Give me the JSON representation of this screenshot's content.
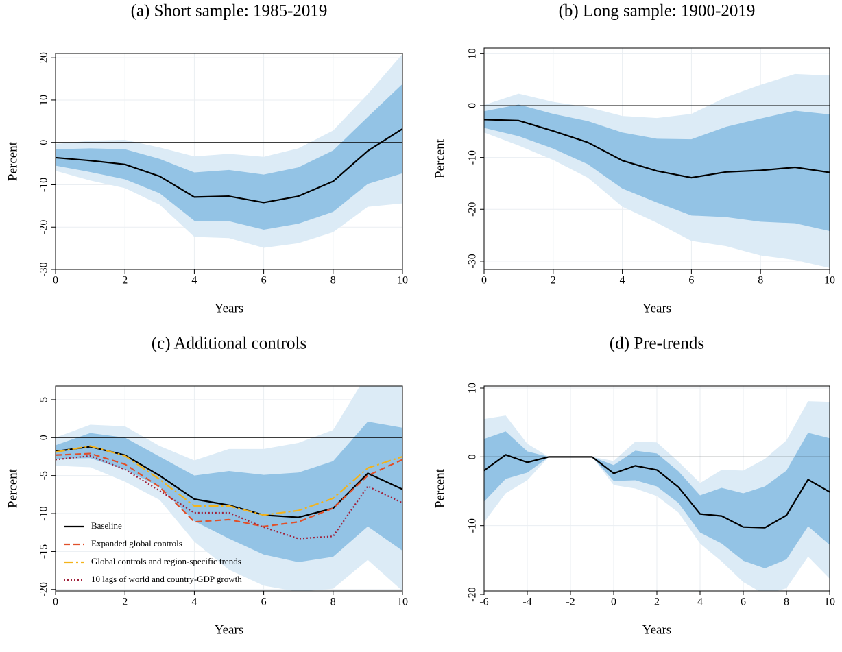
{
  "chart_data": [
    {
      "type": "line",
      "title": "(a) Short sample: 1985-2019",
      "xlabel": "Years",
      "ylabel": "Percent",
      "x": [
        0,
        1,
        2,
        3,
        4,
        5,
        6,
        7,
        8,
        9,
        10
      ],
      "xlim": [
        0,
        10
      ],
      "xticks": [
        0,
        2,
        4,
        6,
        8,
        10
      ],
      "ylim": [
        -30,
        21
      ],
      "yticks": [
        -30,
        -20,
        -10,
        0,
        10,
        20
      ],
      "grid": true,
      "hline": 0,
      "bands": [
        {
          "color": "#dcebf6",
          "lower": [
            -6.7,
            -9,
            -10.8,
            -14.7,
            -22.3,
            -22.6,
            -24.9,
            -23.8,
            -21.2,
            -15.2,
            -14.4
          ],
          "upper": [
            -0.4,
            0.4,
            0.6,
            -1.2,
            -3.3,
            -2.7,
            -3.4,
            -1.4,
            2.8,
            11.4,
            20.9
          ]
        },
        {
          "color": "#93c3e5",
          "lower": [
            -5.5,
            -7,
            -8.7,
            -12,
            -18.5,
            -18.6,
            -20.6,
            -19.2,
            -16.4,
            -9.8,
            -7.3
          ],
          "upper": [
            -1.6,
            -1.4,
            -1.6,
            -3.9,
            -7.1,
            -6.5,
            -7.6,
            -5.9,
            -1.9,
            6,
            13.8
          ]
        }
      ],
      "series": [
        {
          "color": "#000000",
          "values": [
            -3.6,
            -4.3,
            -5.2,
            -8,
            -12.9,
            -12.7,
            -14.2,
            -12.7,
            -9.2,
            -2,
            3.2
          ]
        }
      ]
    },
    {
      "type": "line",
      "title": "(b) Long sample: 1900-2019",
      "xlabel": "Years",
      "ylabel": "Percent",
      "x": [
        0,
        1,
        2,
        3,
        4,
        5,
        6,
        7,
        8,
        9,
        10
      ],
      "xlim": [
        0,
        10
      ],
      "xticks": [
        0,
        2,
        4,
        6,
        8,
        10
      ],
      "ylim": [
        -31.6,
        11.1
      ],
      "yticks": [
        -30,
        -20,
        -10,
        0,
        10
      ],
      "grid": true,
      "hline": 0,
      "bands": [
        {
          "color": "#dcebf6",
          "lower": [
            -5.2,
            -7.7,
            -10.5,
            -13.9,
            -19.5,
            -22.6,
            -26.1,
            -27.1,
            -28.9,
            -29.8,
            -31.3
          ],
          "upper": [
            0.1,
            2.3,
            0.7,
            -0.3,
            -2,
            -2.4,
            -1.6,
            1.6,
            4,
            6.1,
            5.8
          ]
        },
        {
          "color": "#93c3e5",
          "lower": [
            -4.3,
            -5.9,
            -8.3,
            -11.3,
            -16,
            -18.7,
            -21.2,
            -21.5,
            -22.4,
            -22.7,
            -24.2
          ],
          "upper": [
            -1.1,
            0.2,
            -1.6,
            -3,
            -5.2,
            -6.4,
            -6.5,
            -4.1,
            -2.5,
            -1,
            -1.7
          ]
        }
      ],
      "series": [
        {
          "color": "#000000",
          "values": [
            -2.7,
            -2.9,
            -4.9,
            -7.1,
            -10.6,
            -12.6,
            -13.9,
            -12.8,
            -12.5,
            -11.9,
            -12.9
          ]
        }
      ]
    },
    {
      "type": "line",
      "title": "(c) Additional controls",
      "xlabel": "Years",
      "ylabel": "Percent",
      "x": [
        0,
        1,
        2,
        3,
        4,
        5,
        6,
        7,
        8,
        9,
        10
      ],
      "xlim": [
        0,
        10
      ],
      "xticks": [
        0,
        2,
        4,
        6,
        8,
        10
      ],
      "ylim": [
        -20.2,
        6.8
      ],
      "yticks": [
        -20,
        -15,
        -10,
        -5,
        0,
        5
      ],
      "grid": true,
      "hline": 0,
      "legend": "lower left",
      "bands": [
        {
          "color": "#dcebf6",
          "lower": [
            -3.7,
            -3.9,
            -5.8,
            -8.2,
            -13.7,
            -17.4,
            -19.5,
            -20.3,
            -19.9,
            -16.1,
            -20.2
          ],
          "upper": [
            0,
            1.7,
            1.5,
            -1.1,
            -3,
            -1.5,
            -1.5,
            -0.7,
            1,
            8.5,
            8.5
          ]
        },
        {
          "color": "#93c3e5",
          "lower": [
            -2.8,
            -2.7,
            -4.2,
            -6.5,
            -11,
            -13.3,
            -15.4,
            -16.4,
            -15.7,
            -11.7,
            -14.9
          ],
          "upper": [
            -1,
            0.6,
            0,
            -2.5,
            -5,
            -4.4,
            -4.9,
            -4.6,
            -3.1,
            2.1,
            1.3
          ]
        }
      ],
      "series": [
        {
          "name": "Baseline",
          "color": "#000000",
          "dash": "solid",
          "values": [
            -1.8,
            -1.2,
            -2.3,
            -5,
            -8.1,
            -8.9,
            -10.2,
            -10.5,
            -9.3,
            -4.7,
            -6.8
          ]
        },
        {
          "name": "Expanded global controls",
          "color": "#e0502a",
          "dash": "dashed",
          "values": [
            -2.3,
            -2.1,
            -3.5,
            -6.5,
            -11.1,
            -10.8,
            -11.7,
            -11.1,
            -9.3,
            -5,
            -2.9
          ]
        },
        {
          "name": "Global controls and region-specific trends",
          "color": "#f3b31b",
          "dash": "longdash",
          "values": [
            -1.9,
            -1.1,
            -2.4,
            -5.5,
            -9,
            -9,
            -10.2,
            -9.6,
            -8,
            -4,
            -2.5
          ]
        },
        {
          "name": "10 lags of world and country-GDP growth",
          "color": "#a0203a",
          "dash": "dotted",
          "values": [
            -2.9,
            -2.4,
            -4.2,
            -7,
            -9.9,
            -9.9,
            -11.8,
            -13.3,
            -13,
            -6.4,
            -8.6
          ]
        }
      ]
    },
    {
      "type": "line",
      "title": "(d) Pre-trends",
      "xlabel": "Years",
      "ylabel": "Percent",
      "x": [
        -6,
        -5,
        -4,
        -3,
        -2,
        -1,
        0,
        1,
        2,
        3,
        4,
        5,
        6,
        7,
        8,
        9,
        10
      ],
      "xlim": [
        -6,
        10
      ],
      "xticks": [
        -6,
        -4,
        -2,
        0,
        2,
        4,
        6,
        8,
        10
      ],
      "ylim": [
        -19.5,
        10.3
      ],
      "yticks": [
        -20,
        -10,
        0,
        10
      ],
      "grid": true,
      "hline": 0,
      "bands": [
        {
          "color": "#dcebf6",
          "lower": [
            -9.5,
            -5.3,
            -3.4,
            0,
            0,
            0,
            -4.1,
            -4.6,
            -5.7,
            -8.1,
            -12.6,
            -15.2,
            -18.2,
            -20,
            -19.1,
            -14.5,
            -17.7
          ],
          "upper": [
            5.5,
            6,
            1.9,
            0,
            0,
            0,
            -0.6,
            2.2,
            2.1,
            -0.7,
            -3.8,
            -1.9,
            -2,
            -0.3,
            2.4,
            8.1,
            8
          ]
        },
        {
          "color": "#93c3e5",
          "lower": [
            -6.5,
            -3.2,
            -2.3,
            0,
            0,
            0,
            -3.5,
            -3.4,
            -4.3,
            -6.7,
            -11,
            -12.6,
            -15.1,
            -16.2,
            -14.9,
            -10.1,
            -12.8
          ],
          "upper": [
            2.6,
            3.7,
            0.8,
            0,
            0,
            0,
            -1.2,
            0.9,
            0.5,
            -2.1,
            -5.6,
            -4.5,
            -5.3,
            -4.3,
            -2,
            3.5,
            2.7
          ]
        }
      ],
      "series": [
        {
          "color": "#000000",
          "values": [
            -2,
            0.3,
            -0.8,
            0,
            0,
            0,
            -2.4,
            -1.3,
            -1.9,
            -4.4,
            -8.3,
            -8.6,
            -10.2,
            -10.3,
            -8.5,
            -3.3,
            -5.1
          ]
        }
      ]
    }
  ]
}
